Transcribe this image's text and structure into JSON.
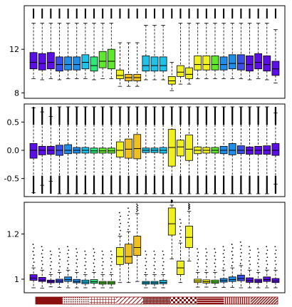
{
  "chart_data": [
    {
      "type": "box",
      "ylim": [
        7.5,
        16.0
      ],
      "yticks": [
        8,
        12
      ],
      "grid": false,
      "boxes": [
        {
          "color": "#5b0fe6",
          "q1": 10.2,
          "median": 10.8,
          "q3": 11.7,
          "wlo": 9.3,
          "whi": 14.4
        },
        {
          "color": "#5b0fe6",
          "q1": 10.1,
          "median": 10.7,
          "q3": 11.6,
          "wlo": 9.2,
          "whi": 14.4
        },
        {
          "color": "#5b0fe6",
          "q1": 10.2,
          "median": 10.8,
          "q3": 11.7,
          "wlo": 9.3,
          "whi": 14.4
        },
        {
          "color": "#3a4fe8",
          "q1": 10.0,
          "median": 10.6,
          "q3": 11.3,
          "wlo": 9.2,
          "whi": 14.4
        },
        {
          "color": "#1f8ee8",
          "q1": 10.1,
          "median": 10.6,
          "q3": 11.3,
          "wlo": 9.3,
          "whi": 14.4
        },
        {
          "color": "#1f8ee8",
          "q1": 10.1,
          "median": 10.6,
          "q3": 11.3,
          "wlo": 9.3,
          "whi": 14.4
        },
        {
          "color": "#1fc2e8",
          "q1": 10.2,
          "median": 10.8,
          "q3": 11.5,
          "wlo": 9.3,
          "whi": 14.4
        },
        {
          "color": "#2ee87a",
          "q1": 10.0,
          "median": 10.5,
          "q3": 11.3,
          "wlo": 9.2,
          "whi": 14.4
        },
        {
          "color": "#5ee82e",
          "q1": 10.3,
          "median": 10.9,
          "q3": 11.8,
          "wlo": 9.3,
          "whi": 14.4
        },
        {
          "color": "#5ee82e",
          "q1": 10.2,
          "median": 10.9,
          "q3": 12.0,
          "wlo": 9.3,
          "whi": 14.4
        },
        {
          "color": "#f0f020",
          "q1": 9.3,
          "median": 9.6,
          "q3": 10.1,
          "wlo": 8.6,
          "whi": 12.6
        },
        {
          "color": "#f0c020",
          "q1": 9.1,
          "median": 9.4,
          "q3": 9.7,
          "wlo": 8.6,
          "whi": 12.6
        },
        {
          "color": "#f0c020",
          "q1": 9.1,
          "median": 9.4,
          "q3": 9.7,
          "wlo": 8.6,
          "whi": 12.6
        },
        {
          "color": "#1fc2e8",
          "q1": 10.0,
          "median": 10.5,
          "q3": 11.4,
          "wlo": 9.2,
          "whi": 14.2
        },
        {
          "color": "#1fc2e8",
          "q1": 10.0,
          "median": 10.5,
          "q3": 11.3,
          "wlo": 9.2,
          "whi": 14.2
        },
        {
          "color": "#1fc2e8",
          "q1": 10.0,
          "median": 10.5,
          "q3": 11.3,
          "wlo": 9.2,
          "whi": 14.2
        },
        {
          "color": "#f0f020",
          "q1": 8.8,
          "median": 9.1,
          "q3": 9.5,
          "wlo": 8.2,
          "whi": 10.8
        },
        {
          "color": "#f0f020",
          "q1": 9.5,
          "median": 9.9,
          "q3": 10.5,
          "wlo": 8.8,
          "whi": 14.4
        },
        {
          "color": "#f0f020",
          "q1": 9.3,
          "median": 9.7,
          "q3": 10.3,
          "wlo": 8.8,
          "whi": 14.4
        },
        {
          "color": "#f0f020",
          "q1": 10.1,
          "median": 10.6,
          "q3": 11.4,
          "wlo": 9.3,
          "whi": 14.4
        },
        {
          "color": "#f0f020",
          "q1": 10.1,
          "median": 10.6,
          "q3": 11.4,
          "wlo": 9.3,
          "whi": 14.4
        },
        {
          "color": "#5ee82e",
          "q1": 10.1,
          "median": 10.6,
          "q3": 11.4,
          "wlo": 9.3,
          "whi": 14.4
        },
        {
          "color": "#1f8ee8",
          "q1": 10.1,
          "median": 10.6,
          "q3": 11.3,
          "wlo": 9.3,
          "whi": 14.4
        },
        {
          "color": "#1f8ee8",
          "q1": 10.2,
          "median": 10.7,
          "q3": 11.5,
          "wlo": 9.3,
          "whi": 14.4
        },
        {
          "color": "#3a4fe8",
          "q1": 10.1,
          "median": 10.7,
          "q3": 11.5,
          "wlo": 9.3,
          "whi": 14.4
        },
        {
          "color": "#5b0fe6",
          "q1": 10.0,
          "median": 10.6,
          "q3": 11.4,
          "wlo": 9.2,
          "whi": 14.4
        },
        {
          "color": "#5b0fe6",
          "q1": 10.2,
          "median": 10.8,
          "q3": 11.6,
          "wlo": 9.3,
          "whi": 14.4
        },
        {
          "color": "#5b0fe6",
          "q1": 10.0,
          "median": 10.6,
          "q3": 11.4,
          "wlo": 9.2,
          "whi": 14.4
        },
        {
          "color": "#5b0fe6",
          "q1": 9.6,
          "median": 10.2,
          "q3": 10.9,
          "wlo": 8.9,
          "whi": 13.8
        }
      ]
    },
    {
      "type": "box",
      "ylim": [
        -0.82,
        0.82
      ],
      "yticks": [
        -0.5,
        0.0,
        0.5
      ],
      "grid": false,
      "boxes": [
        {
          "color": "#5b0fe6",
          "q1": -0.14,
          "median": 0.0,
          "q3": 0.12,
          "wlo": -0.75,
          "whi": 0.75
        },
        {
          "color": "#5b0fe6",
          "q1": -0.08,
          "median": 0.0,
          "q3": 0.07,
          "wlo": -0.62,
          "whi": 0.68
        },
        {
          "color": "#5b0fe6",
          "q1": -0.07,
          "median": 0.0,
          "q3": 0.07,
          "wlo": -0.55,
          "whi": 0.6
        },
        {
          "color": "#3a4fe8",
          "q1": -0.09,
          "median": 0.0,
          "q3": 0.09,
          "wlo": -0.8,
          "whi": 0.8
        },
        {
          "color": "#1f8ee8",
          "q1": -0.06,
          "median": 0.0,
          "q3": 0.1,
          "wlo": -0.8,
          "whi": 0.8
        },
        {
          "color": "#1f8ee8",
          "q1": -0.05,
          "median": 0.0,
          "q3": 0.05,
          "wlo": -0.8,
          "whi": 0.8
        },
        {
          "color": "#1fc2e8",
          "q1": -0.05,
          "median": 0.0,
          "q3": 0.05,
          "wlo": -0.8,
          "whi": 0.8
        },
        {
          "color": "#2ee87a",
          "q1": -0.05,
          "median": -0.01,
          "q3": 0.04,
          "wlo": -0.8,
          "whi": 0.8
        },
        {
          "color": "#5ee82e",
          "q1": -0.05,
          "median": -0.01,
          "q3": 0.04,
          "wlo": -0.8,
          "whi": 0.8
        },
        {
          "color": "#5ee82e",
          "q1": -0.05,
          "median": -0.01,
          "q3": 0.04,
          "wlo": -0.8,
          "whi": 0.8
        },
        {
          "color": "#f0f020",
          "q1": -0.12,
          "median": 0.0,
          "q3": 0.15,
          "wlo": -0.8,
          "whi": 0.8
        },
        {
          "color": "#f0c020",
          "q1": -0.14,
          "median": 0.02,
          "q3": 0.2,
          "wlo": -0.8,
          "whi": 0.8
        },
        {
          "color": "#f0c020",
          "q1": -0.15,
          "median": 0.03,
          "q3": 0.28,
          "wlo": -0.8,
          "whi": 0.8
        },
        {
          "color": "#1fc2e8",
          "q1": -0.04,
          "median": 0.0,
          "q3": 0.04,
          "wlo": -0.8,
          "whi": 0.8
        },
        {
          "color": "#1fc2e8",
          "q1": -0.04,
          "median": 0.0,
          "q3": 0.04,
          "wlo": -0.8,
          "whi": 0.8
        },
        {
          "color": "#1fc2e8",
          "q1": -0.05,
          "median": 0.0,
          "q3": 0.05,
          "wlo": -0.8,
          "whi": 0.8
        },
        {
          "color": "#f0f020",
          "q1": -0.28,
          "median": 0.05,
          "q3": 0.37,
          "wlo": -0.8,
          "whi": 0.8
        },
        {
          "color": "#f0f020",
          "q1": -0.1,
          "median": 0.06,
          "q3": 0.18,
          "wlo": -0.8,
          "whi": 0.8
        },
        {
          "color": "#f0f020",
          "q1": -0.18,
          "median": 0.02,
          "q3": 0.27,
          "wlo": -0.8,
          "whi": 0.8
        },
        {
          "color": "#f0f020",
          "q1": -0.06,
          "median": 0.0,
          "q3": 0.06,
          "wlo": -0.8,
          "whi": 0.8
        },
        {
          "color": "#f0f020",
          "q1": -0.05,
          "median": 0.0,
          "q3": 0.05,
          "wlo": -0.8,
          "whi": 0.8
        },
        {
          "color": "#5ee82e",
          "q1": -0.05,
          "median": 0.0,
          "q3": 0.05,
          "wlo": -0.8,
          "whi": 0.8
        },
        {
          "color": "#1f8ee8",
          "q1": -0.06,
          "median": 0.0,
          "q3": 0.07,
          "wlo": -0.8,
          "whi": 0.8
        },
        {
          "color": "#1f8ee8",
          "q1": -0.08,
          "median": 0.0,
          "q3": 0.12,
          "wlo": -0.8,
          "whi": 0.8
        },
        {
          "color": "#3a4fe8",
          "q1": -0.06,
          "median": 0.0,
          "q3": 0.08,
          "wlo": -0.8,
          "whi": 0.8
        },
        {
          "color": "#5b0fe6",
          "q1": -0.07,
          "median": 0.0,
          "q3": 0.06,
          "wlo": -0.8,
          "whi": 0.8
        },
        {
          "color": "#5b0fe6",
          "q1": -0.07,
          "median": 0.0,
          "q3": 0.07,
          "wlo": -0.8,
          "whi": 0.8
        },
        {
          "color": "#5b0fe6",
          "q1": -0.07,
          "median": 0.0,
          "q3": 0.08,
          "wlo": -0.8,
          "whi": 0.8
        },
        {
          "color": "#5b0fe6",
          "q1": -0.09,
          "median": 0.0,
          "q3": 0.12,
          "wlo": -0.6,
          "whi": 0.66
        }
      ]
    },
    {
      "type": "box",
      "ylim": [
        0.94,
        1.34
      ],
      "yticks": [
        1.0,
        1.2
      ],
      "grid": false,
      "boxes": [
        {
          "color": "#5b0fe6",
          "q1": 0.995,
          "median": 1.005,
          "q3": 1.02,
          "wlo": 0.962,
          "whi": 1.05
        },
        {
          "color": "#5b0fe6",
          "q1": 0.99,
          "median": 0.996,
          "q3": 1.008,
          "wlo": 0.96,
          "whi": 1.04
        },
        {
          "color": "#5b0fe6",
          "q1": 0.984,
          "median": 0.99,
          "q3": 0.996,
          "wlo": 0.966,
          "whi": 1.02
        },
        {
          "color": "#3a4fe8",
          "q1": 0.985,
          "median": 0.992,
          "q3": 1.0,
          "wlo": 0.964,
          "whi": 1.03
        },
        {
          "color": "#1f8ee8",
          "q1": 0.99,
          "median": 0.998,
          "q3": 1.01,
          "wlo": 0.962,
          "whi": 1.04
        },
        {
          "color": "#1f8ee8",
          "q1": 0.984,
          "median": 0.99,
          "q3": 0.999,
          "wlo": 0.962,
          "whi": 1.03
        },
        {
          "color": "#1fc2e8",
          "q1": 0.98,
          "median": 0.987,
          "q3": 0.996,
          "wlo": 0.962,
          "whi": 1.02
        },
        {
          "color": "#2ee87a",
          "q1": 0.982,
          "median": 0.989,
          "q3": 0.998,
          "wlo": 0.962,
          "whi": 1.03
        },
        {
          "color": "#5ee82e",
          "q1": 0.978,
          "median": 0.984,
          "q3": 0.99,
          "wlo": 0.962,
          "whi": 1.02
        },
        {
          "color": "#5ee82e",
          "q1": 0.978,
          "median": 0.984,
          "q3": 0.99,
          "wlo": 0.962,
          "whi": 1.02
        },
        {
          "color": "#f0f020",
          "q1": 1.065,
          "median": 1.1,
          "q3": 1.14,
          "wlo": 0.985,
          "whi": 1.19
        },
        {
          "color": "#f0c020",
          "q1": 1.07,
          "median": 1.1,
          "q3": 1.155,
          "wlo": 0.985,
          "whi": 1.21
        },
        {
          "color": "#f0c020",
          "q1": 1.105,
          "median": 1.14,
          "q3": 1.19,
          "wlo": 0.99,
          "whi": 1.29
        },
        {
          "color": "#1fc2e8",
          "q1": 0.978,
          "median": 0.984,
          "q3": 0.99,
          "wlo": 0.962,
          "whi": 1.02
        },
        {
          "color": "#1fc2e8",
          "q1": 0.978,
          "median": 0.984,
          "q3": 0.99,
          "wlo": 0.962,
          "whi": 1.02
        },
        {
          "color": "#1fc2e8",
          "q1": 0.98,
          "median": 0.986,
          "q3": 0.995,
          "wlo": 0.962,
          "whi": 1.02
        },
        {
          "color": "#f0f020",
          "q1": 1.195,
          "median": 1.245,
          "q3": 1.315,
          "wlo": 1.09,
          "whi": 1.34
        },
        {
          "color": "#f0f020",
          "q1": 1.02,
          "median": 1.05,
          "q3": 1.08,
          "wlo": 0.985,
          "whi": 1.16
        },
        {
          "color": "#f0f020",
          "q1": 1.14,
          "median": 1.185,
          "q3": 1.235,
          "wlo": 1.08,
          "whi": 1.3
        },
        {
          "color": "#f0f020",
          "q1": 0.985,
          "median": 0.992,
          "q3": 1.0,
          "wlo": 0.965,
          "whi": 1.03
        },
        {
          "color": "#f0f020",
          "q1": 0.983,
          "median": 0.989,
          "q3": 0.997,
          "wlo": 0.965,
          "whi": 1.03
        },
        {
          "color": "#5ee82e",
          "q1": 0.982,
          "median": 0.988,
          "q3": 0.996,
          "wlo": 0.964,
          "whi": 1.03
        },
        {
          "color": "#1f8ee8",
          "q1": 0.987,
          "median": 0.994,
          "q3": 1.003,
          "wlo": 0.964,
          "whi": 1.04
        },
        {
          "color": "#1f8ee8",
          "q1": 0.99,
          "median": 0.998,
          "q3": 1.01,
          "wlo": 0.964,
          "whi": 1.05
        },
        {
          "color": "#3a4fe8",
          "q1": 0.993,
          "median": 1.003,
          "q3": 1.018,
          "wlo": 0.962,
          "whi": 1.06
        },
        {
          "color": "#5b0fe6",
          "q1": 0.986,
          "median": 0.994,
          "q3": 1.006,
          "wlo": 0.962,
          "whi": 1.04
        },
        {
          "color": "#5b0fe6",
          "q1": 0.985,
          "median": 0.992,
          "q3": 1.0,
          "wlo": 0.962,
          "whi": 1.03
        },
        {
          "color": "#5b0fe6",
          "q1": 0.99,
          "median": 0.998,
          "q3": 1.01,
          "wlo": 0.962,
          "whi": 1.04
        },
        {
          "color": "#5b0fe6",
          "q1": 0.985,
          "median": 0.992,
          "q3": 1.003,
          "wlo": 0.962,
          "whi": 1.04
        }
      ]
    }
  ],
  "pattern_bar": {
    "color": "#8b1010",
    "segments": [
      "solid",
      "dots",
      "grid",
      "diagonal-white",
      "dense-dots",
      "checker",
      "solid-lines",
      "vertical-lines",
      "diagonal"
    ]
  }
}
